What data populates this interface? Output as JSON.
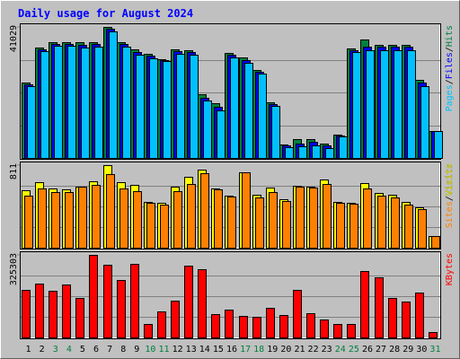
{
  "chart_data": [
    {
      "type": "bar",
      "title": "Daily usage for August 2024",
      "categories": [
        "1",
        "2",
        "3",
        "4",
        "5",
        "6",
        "7",
        "8",
        "9",
        "10",
        "11",
        "12",
        "13",
        "14",
        "15",
        "16",
        "17",
        "18",
        "19",
        "20",
        "21",
        "22",
        "23",
        "24",
        "25",
        "26",
        "27",
        "28",
        "29",
        "30",
        "31"
      ],
      "category_colors": [
        "#000000",
        "#000000",
        "#008040",
        "#008040",
        "#000000",
        "#000000",
        "#000000",
        "#000000",
        "#000000",
        "#008040",
        "#008040",
        "#000000",
        "#000000",
        "#000000",
        "#000000",
        "#000000",
        "#008040",
        "#008040",
        "#000000",
        "#000000",
        "#000000",
        "#000000",
        "#000000",
        "#008040",
        "#008040",
        "#000000",
        "#000000",
        "#000000",
        "#000000",
        "#000000",
        "#008040"
      ],
      "ylim": [
        0,
        41029
      ],
      "yticks": [
        41029
      ],
      "series": [
        {
          "name": "Hits",
          "color": "#008040",
          "values": [
            23604,
            34563,
            36249,
            36249,
            36249,
            36249,
            41029,
            36249,
            34001,
            32596,
            30910,
            34001,
            33720,
            19951,
            17141,
            32877,
            31472,
            27538,
            17422,
            4215,
            5901,
            5901,
            4496,
            7306,
            34282,
            37092,
            35406,
            35406,
            35406,
            24447,
            8430
          ]
        },
        {
          "name": "Files",
          "color": "#0000ff",
          "values": [
            23042,
            34001,
            35687,
            35687,
            35406,
            35687,
            40464,
            35687,
            33158,
            32034,
            30629,
            33439,
            33158,
            18827,
            16017,
            32315,
            30629,
            26976,
            16860,
            3934,
            4496,
            5058,
            3934,
            7025,
            33720,
            34844,
            34844,
            34844,
            34844,
            23604,
            8430
          ]
        },
        {
          "name": "Pages",
          "color": "#00c0ff",
          "values": [
            22480,
            33439,
            35125,
            35125,
            34563,
            34844,
            39621,
            34844,
            32315,
            31191,
            30348,
            32596,
            32315,
            17984,
            14893,
            31472,
            29786,
            26414,
            16298,
            3372,
            3653,
            3934,
            3091,
            6744,
            33158,
            33720,
            33720,
            33720,
            33720,
            22480,
            8430
          ]
        }
      ]
    },
    {
      "type": "bar",
      "ylim": [
        0,
        811
      ],
      "yticks": [
        811
      ],
      "series": [
        {
          "name": "Visits",
          "color": "#ffff00",
          "values": [
            564,
            643,
            582,
            573,
            599,
            652,
            811,
            643,
            617,
            450,
            441,
            599,
            696,
            767,
            582,
            511,
            740,
            520,
            591,
            476,
            608,
            599,
            670,
            450,
            441,
            635,
            538,
            520,
            450,
            397,
            115
          ]
        },
        {
          "name": "Sites",
          "color": "#ff8000",
          "values": [
            511,
            582,
            547,
            547,
            599,
            617,
            723,
            582,
            555,
            441,
            423,
            555,
            626,
            732,
            573,
            502,
            740,
            494,
            547,
            458,
            599,
            591,
            626,
            441,
            432,
            582,
            511,
            494,
            423,
            379,
            115
          ]
        }
      ]
    },
    {
      "type": "bar",
      "ylim": [
        0,
        325303
      ],
      "yticks": [
        325303
      ],
      "series": [
        {
          "name": "KBytes",
          "color": "#ff0000",
          "values": [
            187408,
            212160,
            183872,
            208624,
            155584,
            325303,
            286416,
            226304,
            289952,
            53040,
            102544,
            144976,
            282880,
            268736,
            91936,
            109616,
            84864,
            81328,
            116688,
            88400,
            187408,
            95472,
            70720,
            53040,
            53040,
            261664,
            236912,
            155584,
            141440,
            176800,
            21216
          ]
        }
      ]
    }
  ]
}
